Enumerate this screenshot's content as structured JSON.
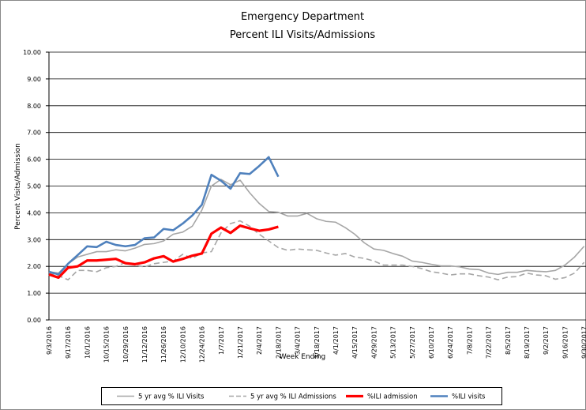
{
  "chart_data": {
    "type": "line",
    "title": "Emergency Department",
    "subtitle": "Percent ILI Visits/Admissions",
    "y_label": "Percent Visits/Admission",
    "x_label": "Week Ending",
    "categories": [
      "9/3/2016",
      null,
      "9/17/2016",
      null,
      "10/1/2016",
      null,
      "10/15/2016",
      null,
      "10/29/2016",
      null,
      "11/12/2016",
      null,
      "11/26/2016",
      null,
      "12/10/2016",
      null,
      "12/24/2016",
      null,
      "1/7/2017",
      null,
      "1/21/2017",
      null,
      "2/4/2017",
      null,
      "2/18/2017",
      null,
      "3/4/2017",
      null,
      "3/18/2017",
      null,
      "4/1/2017",
      null,
      "4/15/2017",
      null,
      "4/29/2017",
      null,
      "5/13/2017",
      null,
      "5/27/2017",
      null,
      "6/10/2017",
      null,
      "6/24/2017",
      null,
      "7/8/2017",
      null,
      "7/22/2017",
      null,
      "8/5/2017",
      null,
      "8/19/2017",
      null,
      "9/2/2017",
      null,
      "9/16/2017",
      null,
      "9/30/2017"
    ],
    "series": [
      {
        "name": "5 yr avg % ILI Visits",
        "color": "#a6a6a6",
        "width": 1.6,
        "dash": false,
        "values": [
          1.8,
          1.75,
          2.1,
          2.35,
          2.45,
          2.55,
          2.55,
          2.62,
          2.58,
          2.68,
          2.82,
          2.85,
          2.95,
          3.2,
          3.28,
          3.5,
          4.1,
          5.0,
          5.25,
          5.05,
          5.22,
          4.75,
          4.35,
          4.05,
          4.02,
          3.88,
          3.88,
          3.98,
          3.78,
          3.68,
          3.65,
          3.45,
          3.2,
          2.88,
          2.65,
          2.6,
          2.48,
          2.38,
          2.2,
          2.15,
          2.08,
          2.02,
          2.02,
          1.98,
          1.9,
          1.88,
          1.75,
          1.7,
          1.78,
          1.78,
          1.85,
          1.82,
          1.8,
          1.85,
          2.05,
          2.35,
          2.75
        ]
      },
      {
        "name": "5 yr avg % ILI Admissions",
        "color": "#a6a6a6",
        "width": 1.6,
        "dash": true,
        "values": [
          1.75,
          1.65,
          1.5,
          1.85,
          1.85,
          1.8,
          1.95,
          2.0,
          2.15,
          2.05,
          1.98,
          2.1,
          2.15,
          2.2,
          2.45,
          2.3,
          2.5,
          2.55,
          3.25,
          3.6,
          3.7,
          3.5,
          3.2,
          2.95,
          2.7,
          2.6,
          2.65,
          2.62,
          2.6,
          2.5,
          2.42,
          2.48,
          2.35,
          2.3,
          2.2,
          2.05,
          2.05,
          2.05,
          2.0,
          1.92,
          1.8,
          1.75,
          1.68,
          1.72,
          1.72,
          1.65,
          1.6,
          1.5,
          1.6,
          1.62,
          1.75,
          1.68,
          1.65,
          1.52,
          1.58,
          1.75,
          2.15
        ]
      },
      {
        "name": "%ILI admission",
        "color": "#ff0000",
        "width": 3.2,
        "dash": false,
        "values": [
          1.7,
          1.58,
          1.95,
          2.0,
          2.22,
          2.22,
          2.25,
          2.28,
          2.12,
          2.08,
          2.15,
          2.3,
          2.38,
          2.18,
          2.28,
          2.4,
          2.48,
          3.22,
          3.45,
          3.25,
          3.52,
          3.42,
          3.33,
          3.38,
          3.48,
          null,
          null,
          null,
          null,
          null,
          null,
          null,
          null,
          null,
          null,
          null,
          null,
          null,
          null,
          null,
          null,
          null,
          null,
          null,
          null,
          null,
          null,
          null,
          null,
          null,
          null,
          null,
          null,
          null,
          null,
          null,
          null
        ]
      },
      {
        "name": "%ILI visits",
        "color": "#4f81bd",
        "width": 2.6,
        "dash": false,
        "values": [
          1.8,
          1.7,
          2.1,
          2.42,
          2.75,
          2.72,
          2.92,
          2.8,
          2.75,
          2.8,
          3.05,
          3.08,
          3.4,
          3.35,
          3.6,
          3.9,
          4.3,
          5.42,
          5.2,
          4.9,
          5.48,
          5.45,
          5.75,
          6.08,
          5.35,
          null,
          null,
          null,
          null,
          null,
          null,
          null,
          null,
          null,
          null,
          null,
          null,
          null,
          null,
          null,
          null,
          null,
          null,
          null,
          null,
          null,
          null,
          null,
          null,
          null,
          null,
          null,
          null,
          null,
          null,
          null,
          null
        ]
      }
    ],
    "ylim": [
      0,
      10
    ],
    "yticks": [
      {
        "value": 0,
        "label": "0.00"
      },
      {
        "value": 1,
        "label": "1.00"
      },
      {
        "value": 2,
        "label": "2.00"
      },
      {
        "value": 3,
        "label": "3.00"
      },
      {
        "value": 4,
        "label": "4.00"
      },
      {
        "value": 5,
        "label": "5.00"
      },
      {
        "value": 6,
        "label": "6.00"
      },
      {
        "value": 7,
        "label": "7.00"
      },
      {
        "value": 8,
        "label": "8.00"
      },
      {
        "value": 9,
        "label": "9.00"
      },
      {
        "value": 10,
        "label": "10.00"
      }
    ],
    "grid": true,
    "legend": "bottom"
  }
}
